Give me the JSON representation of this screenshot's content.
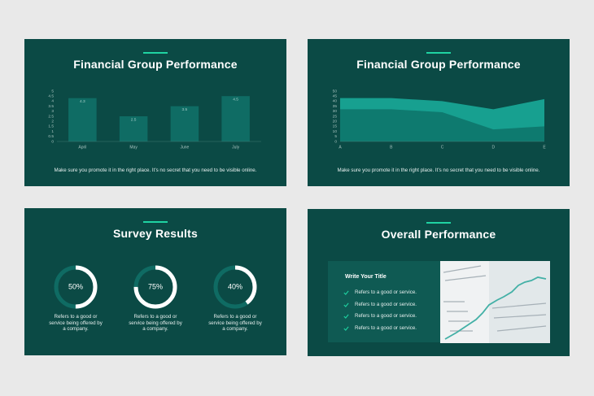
{
  "chart_data": [
    {
      "type": "bar",
      "title": "Financial Group Performance",
      "caption": "Make sure you promote it in the right place. It’s no secret that you need to be visible online.",
      "categories": [
        "April",
        "May",
        "June",
        "July"
      ],
      "values": [
        4.3,
        2.5,
        3.5,
        4.5
      ],
      "color": "#0f6c64",
      "ylim": [
        0,
        5
      ],
      "yticks": [
        0,
        0.5,
        1,
        1.5,
        2,
        2.5,
        3,
        3.5,
        4,
        4.5,
        5
      ],
      "grid": false
    },
    {
      "type": "area",
      "title": "Financial Group Performance",
      "caption": "Make sure you promote it in the right place. It’s no secret that you need to be visible online.",
      "categories": [
        "A",
        "B",
        "C",
        "D",
        "E"
      ],
      "series": [
        {
          "color": "#17a090",
          "values": [
            43,
            43,
            40,
            32,
            42
          ]
        },
        {
          "color": "#0e7a6f",
          "values": [
            32,
            32,
            29,
            12,
            15
          ]
        }
      ],
      "ylim": [
        0,
        50
      ],
      "yticks": [
        0,
        5,
        10,
        15,
        20,
        25,
        30,
        35,
        40,
        45,
        50
      ],
      "grid": false
    }
  ],
  "survey": {
    "title": "Survey Results",
    "items": [
      {
        "value": 50,
        "label": "50%",
        "text": "Refers to a good or service being offered by a company."
      },
      {
        "value": 75,
        "label": "75%",
        "text": "Refers to a good or service being offered by a company."
      },
      {
        "value": 40,
        "label": "40%",
        "text": "Refers to a good or service being offered by a company."
      }
    ]
  },
  "performance": {
    "title": "Overall Performance",
    "panel_title": "Write Your Title",
    "items": [
      "Refers to a good or service.",
      "Refers to a good or service.",
      "Refers to a good or service.",
      "Refers to a good or service."
    ]
  }
}
